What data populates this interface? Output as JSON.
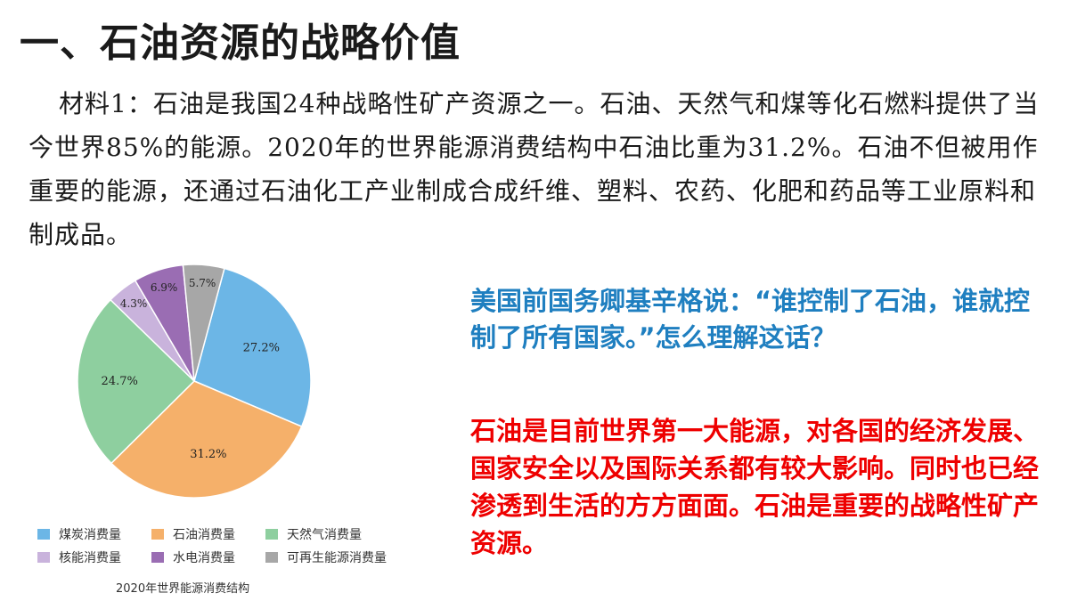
{
  "page": {
    "title": "一、石油资源的战略价值",
    "material_text": "材料1：石油是我国24种战略性矿产资源之一。石油、天然气和煤等化石燃料提供了当今世界85%的能源。2020年的世界能源消费结构中石油比重为31.2%。石油不但被用作重要的能源，还通过石油化工产业制成合成纤维、塑料、农药、化肥和药品等工业原料和制成品。",
    "question": "美国前国务卿基辛格说：“谁控制了石油，谁就控制了所有国家。”怎么理解这话？",
    "answer": "石油是目前世界第一大能源，对各国的经济发展、国家安全以及国际关系都有较大影响。同时也已经渗透到生活的方方面面。石油是重要的战略性矿产资源。",
    "caption": "2020年世界能源消费结构"
  },
  "chart_data": {
    "type": "pie",
    "title": "",
    "start_angle_deg": 15,
    "direction": "clockwise",
    "unit": "%",
    "legend_position": "bottom",
    "slices": [
      {
        "name": "煤炭消费量",
        "value": 27.2,
        "label": "27.2%",
        "color": "#6cb6e6"
      },
      {
        "name": "石油消费量",
        "value": 31.2,
        "label": "31.2%",
        "color": "#f5b06a"
      },
      {
        "name": "天然气消费量",
        "value": 24.7,
        "label": "24.7%",
        "color": "#8ecf9f"
      },
      {
        "name": "核能消费量",
        "value": 4.3,
        "label": "4.3%",
        "color": "#c9b3dc"
      },
      {
        "name": "水电消费量",
        "value": 6.9,
        "label": "6.9%",
        "color": "#9a6db3"
      },
      {
        "name": "可再生能源消费量",
        "value": 5.7,
        "label": "5.7%",
        "color": "#a7a7a7"
      }
    ]
  }
}
